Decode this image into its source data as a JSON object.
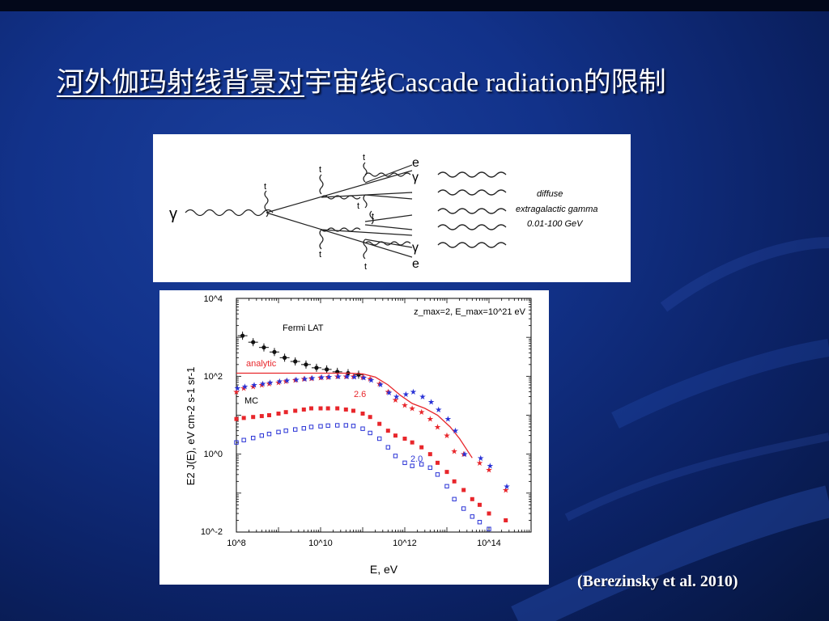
{
  "slide": {
    "title_underlined": "河外伽玛射线背景对",
    "title_rest": "宇宙线Cascade radiation的限制",
    "citation": "(Berezinsky et al. 2010)"
  },
  "diagram": {
    "gamma_symbol": "γ",
    "vertex_label": "t",
    "electron_label": "e",
    "photon_label": "γ",
    "legend_line1": "diffuse",
    "legend_line2": "extragalactic gamma",
    "legend_line3": "0.01-100 GeV"
  },
  "chart_data": {
    "type": "scatter",
    "xscale": "log",
    "yscale": "log",
    "xlim": [
      100000000.0,
      1000000000000000.0
    ],
    "ylim": [
      0.01,
      10000
    ],
    "xlabel": "E, eV",
    "ylabel": "E2 J(E), eV cm-2 s-1 sr-1",
    "x_ticks": [
      "10^8",
      "10^10",
      "10^12",
      "10^14"
    ],
    "y_ticks": [
      "10^4",
      "10^2",
      "10^0",
      "10^-2"
    ],
    "annotation": "z_max=2, E_max=10^21 eV",
    "labels": {
      "fermi": "Fermi LAT",
      "analytic": "analytic",
      "mc": "MC",
      "g26": "2.6",
      "g20": "2.0"
    },
    "colors": {
      "black": "#111111",
      "red": "#e8262b",
      "blue": "#2a33d6"
    },
    "series": [
      {
        "name": "Fermi LAT",
        "x": [
          140000000.0,
          250000000.0,
          450000000.0,
          800000000.0,
          1400000000.0,
          2500000000.0,
          4500000000.0,
          8000000000.0,
          14000000000.0,
          25000000000.0,
          45000000000.0,
          80000000000.0
        ],
        "y": [
          1100,
          750,
          550,
          420,
          300,
          240,
          200,
          165,
          150,
          130,
          120,
          110
        ]
      },
      {
        "name": "analytic",
        "x": [
          100000000.0,
          1000000000.0,
          10000000000.0,
          50000000000.0,
          100000000000.0,
          200000000000.0,
          400000000000.0,
          800000000000.0,
          1500000000000.0,
          3000000000000.0,
          6000000000000.0,
          12000000000000.0,
          20000000000000.0,
          40000000000000.0
        ],
        "y": [
          120,
          120,
          120,
          120,
          115,
          95,
          60,
          32,
          20,
          15,
          10,
          5,
          2.5,
          0.8
        ]
      },
      {
        "name": "MC 2.6 stars",
        "x": [
          100000000.0,
          150000000.0,
          250000000.0,
          400000000.0,
          600000000.0,
          1000000000.0,
          1500000000.0,
          2500000000.0,
          4000000000.0,
          6000000000.0,
          10000000000.0,
          15000000000.0,
          25000000000.0,
          40000000000.0,
          60000000000.0,
          100000000000.0,
          150000000000.0,
          250000000000.0,
          400000000000.0,
          600000000000.0,
          1000000000000.0,
          1500000000000.0,
          2500000000000.0,
          4000000000000.0,
          6000000000000.0,
          10000000000000.0,
          15000000000000.0,
          25000000000000.0,
          60000000000000.0,
          100000000000000.0,
          250000000000000.0
        ],
        "y": [
          40,
          50,
          55,
          60,
          65,
          70,
          75,
          80,
          85,
          88,
          92,
          95,
          100,
          100,
          100,
          95,
          85,
          65,
          40,
          25,
          18,
          15,
          12,
          8,
          5,
          3,
          1.2,
          1,
          0.6,
          0.4,
          0.12
        ]
      },
      {
        "name": "MC 2.0 stars",
        "x": [
          100000000.0,
          150000000.0,
          250000000.0,
          400000000.0,
          600000000.0,
          1000000000.0,
          1500000000.0,
          2500000000.0,
          4000000000.0,
          6000000000.0,
          10000000000.0,
          15000000000.0,
          25000000000.0,
          40000000000.0,
          60000000000.0,
          100000000000.0,
          150000000000.0,
          250000000000.0,
          400000000000.0,
          600000000000.0,
          1000000000000.0,
          1500000000000.0,
          2500000000000.0,
          4000000000000.0,
          6000000000000.0,
          10000000000000.0,
          15000000000000.0,
          25000000000000.0,
          60000000000000.0,
          100000000000000.0,
          250000000000000.0
        ],
        "y": [
          50,
          55,
          60,
          65,
          70,
          75,
          78,
          82,
          86,
          90,
          95,
          98,
          100,
          100,
          98,
          92,
          80,
          62,
          38,
          30,
          35,
          40,
          30,
          22,
          14,
          8,
          4,
          1,
          0.8,
          0.5,
          0.15
        ]
      },
      {
        "name": "MC 2.6 squares",
        "x": [
          100000000.0,
          150000000.0,
          250000000.0,
          400000000.0,
          600000000.0,
          1000000000.0,
          1500000000.0,
          2500000000.0,
          4000000000.0,
          6000000000.0,
          10000000000.0,
          15000000000.0,
          25000000000.0,
          40000000000.0,
          60000000000.0,
          100000000000.0,
          150000000000.0,
          250000000000.0,
          400000000000.0,
          600000000000.0,
          1000000000000.0,
          1500000000000.0,
          2500000000000.0,
          4000000000000.0,
          6000000000000.0,
          10000000000000.0,
          15000000000000.0,
          25000000000000.0,
          40000000000000.0,
          60000000000000.0,
          100000000000000.0,
          250000000000000.0
        ],
        "y": [
          8,
          8.5,
          9,
          9.5,
          10,
          11,
          12,
          13,
          14,
          15,
          15,
          15,
          15,
          14,
          13,
          11,
          9,
          6,
          4,
          3,
          2.5,
          2,
          1.5,
          1,
          0.6,
          0.35,
          0.2,
          0.12,
          0.07,
          0.05,
          0.03,
          0.02
        ]
      },
      {
        "name": "MC 2.0 squares",
        "x": [
          100000000.0,
          150000000.0,
          250000000.0,
          400000000.0,
          600000000.0,
          1000000000.0,
          1500000000.0,
          2500000000.0,
          4000000000.0,
          6000000000.0,
          10000000000.0,
          15000000000.0,
          25000000000.0,
          40000000000.0,
          60000000000.0,
          100000000000.0,
          150000000000.0,
          250000000000.0,
          400000000000.0,
          600000000000.0,
          1000000000000.0,
          1500000000000.0,
          2500000000000.0,
          4000000000000.0,
          6000000000000.0,
          10000000000000.0,
          15000000000000.0,
          25000000000000.0,
          40000000000000.0,
          60000000000000.0,
          100000000000000.0
        ],
        "y": [
          2,
          2.3,
          2.6,
          3,
          3.3,
          3.7,
          4,
          4.3,
          4.6,
          5,
          5.2,
          5.4,
          5.5,
          5.5,
          5.3,
          4.5,
          3.5,
          2.5,
          1.5,
          0.9,
          0.6,
          0.5,
          0.55,
          0.45,
          0.3,
          0.15,
          0.07,
          0.04,
          0.025,
          0.018,
          0.012
        ]
      }
    ]
  }
}
